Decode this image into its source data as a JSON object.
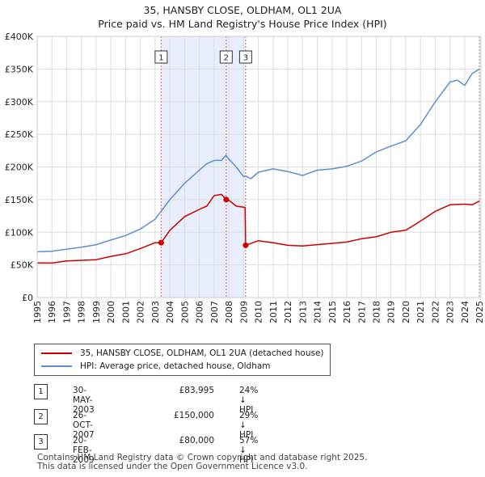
{
  "chart_data": {
    "type": "line",
    "title": "35, HANSBY CLOSE, OLDHAM, OL1 2UA",
    "subtitle": "Price paid vs. HM Land Registry's House Price Index (HPI)",
    "xlim": [
      1995,
      2025.1
    ],
    "ylim": [
      0,
      400000
    ],
    "y_ticks": [
      {
        "value": 0,
        "label": "£0"
      },
      {
        "value": 50000,
        "label": "£50K"
      },
      {
        "value": 100000,
        "label": "£100K"
      },
      {
        "value": 150000,
        "label": "£150K"
      },
      {
        "value": 200000,
        "label": "£200K"
      },
      {
        "value": 250000,
        "label": "£250K"
      },
      {
        "value": 300000,
        "label": "£300K"
      },
      {
        "value": 350000,
        "label": "£350K"
      },
      {
        "value": 400000,
        "label": "£400K"
      }
    ],
    "x_ticks": [
      "1995",
      "1996",
      "1997",
      "1998",
      "1999",
      "2000",
      "2001",
      "2002",
      "2003",
      "2004",
      "2005",
      "2006",
      "2007",
      "2008",
      "2009",
      "2010",
      "2011",
      "2012",
      "2013",
      "2014",
      "2015",
      "2016",
      "2017",
      "2018",
      "2019",
      "2020",
      "2021",
      "2022",
      "2023",
      "2024",
      "2025"
    ],
    "shaded_period": [
      2003.41,
      2009.14
    ],
    "series": [
      {
        "name": "35, HANSBY CLOSE, OLDHAM, OL1 2UA (detached house)",
        "color": "#cc0000",
        "x": [
          1995,
          1996,
          1997,
          1998,
          1999,
          2000,
          2001,
          2002,
          2003,
          2003.41,
          2004,
          2005,
          2006,
          2006.5,
          2007,
          2007.5,
          2007.82,
          2008,
          2008.5,
          2009.1,
          2009.14,
          2010,
          2011,
          2012,
          2013,
          2014,
          2015,
          2016,
          2017,
          2018,
          2019,
          2020,
          2021,
          2022,
          2023,
          2024,
          2024.5,
          2025
        ],
        "y": [
          53000,
          52800,
          56000,
          57000,
          58000,
          63000,
          67000,
          75000,
          84000,
          83995,
          103000,
          124000,
          135000,
          140000,
          156000,
          158000,
          150000,
          149000,
          140000,
          138000,
          80000,
          87000,
          84000,
          80000,
          79000,
          81000,
          83000,
          85000,
          90000,
          93000,
          100000,
          103000,
          117000,
          132000,
          142000,
          143000,
          142000,
          148000
        ]
      },
      {
        "name": "HPI: Average price, detached house, Oldham",
        "color": "#5b8fd0",
        "x": [
          1995,
          1996,
          1997,
          1998,
          1999,
          2000,
          2001,
          2002,
          2003,
          2004,
          2005,
          2006,
          2006.5,
          2007,
          2007.5,
          2007.8,
          2008,
          2008.5,
          2009,
          2009.14,
          2009.5,
          2010,
          2011,
          2012,
          2013,
          2014,
          2015,
          2016,
          2017,
          2018,
          2019,
          2020,
          2021,
          2022,
          2023,
          2023.5,
          2024,
          2024.5,
          2025
        ],
        "y": [
          70000,
          71000,
          74000,
          77000,
          81000,
          88000,
          95000,
          105000,
          120000,
          150000,
          175000,
          195000,
          205000,
          210000,
          210000,
          218000,
          212000,
          200000,
          185000,
          186000,
          182000,
          192000,
          197000,
          193000,
          187000,
          195000,
          197000,
          201000,
          209000,
          223000,
          232000,
          240000,
          265000,
          300000,
          330000,
          333000,
          325000,
          343000,
          350000
        ]
      }
    ],
    "sales": [
      {
        "num": "1",
        "x": 2003.41,
        "y": 83995
      },
      {
        "num": "2",
        "x": 2007.82,
        "y": 150000
      },
      {
        "num": "3",
        "x": 2009.14,
        "y": 80000
      }
    ]
  },
  "legend": {
    "property": "35, HANSBY CLOSE, OLDHAM, OL1 2UA (detached house)",
    "hpi": "HPI: Average price, detached house, Oldham"
  },
  "transactions": [
    {
      "num": "1",
      "date": "30-MAY-2003",
      "price": "£83,995",
      "hpi": "24% ↓ HPI"
    },
    {
      "num": "2",
      "date": "26-OCT-2007",
      "price": "£150,000",
      "hpi": "29% ↓ HPI"
    },
    {
      "num": "3",
      "date": "20-FEB-2009",
      "price": "£80,000",
      "hpi": "57% ↓ HPI"
    }
  ],
  "footer": {
    "line1": "Contains HM Land Registry data © Crown copyright and database right 2025.",
    "line2": "This data is licensed under the Open Government Licence v3.0."
  }
}
